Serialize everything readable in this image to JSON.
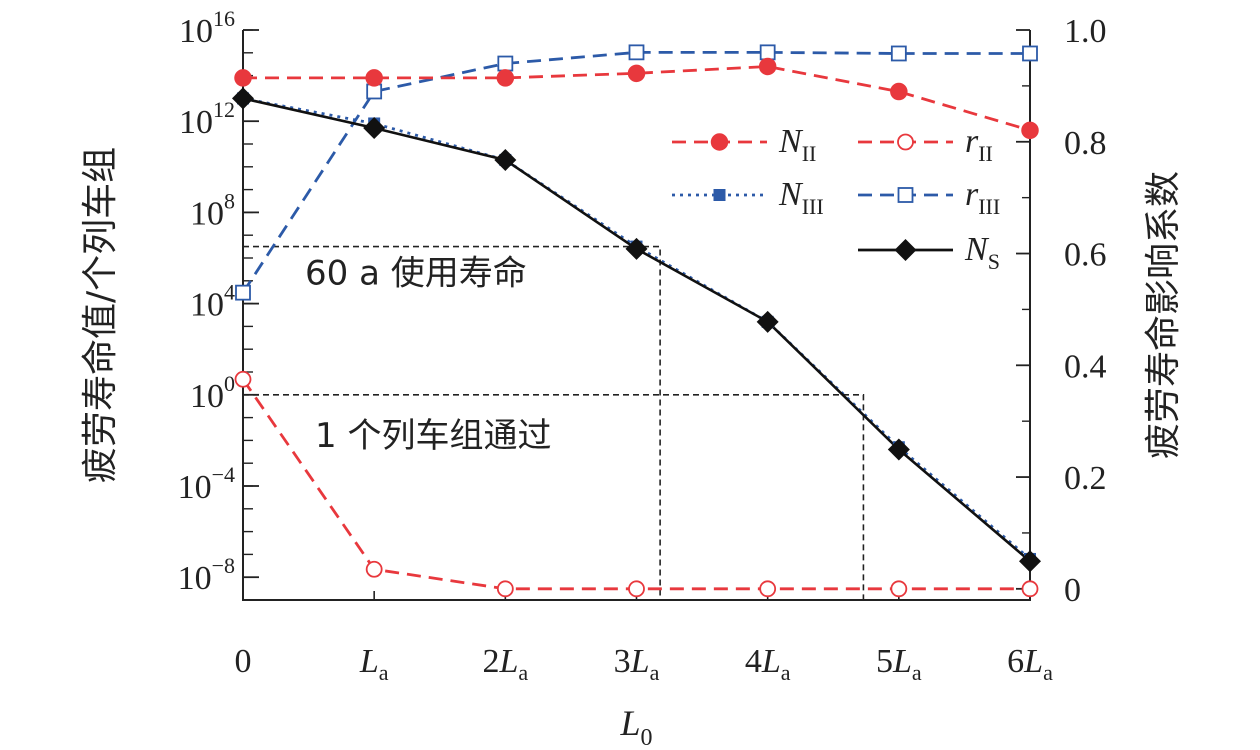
{
  "chart_data": {
    "type": "line",
    "xlabel": "L",
    "xlabel_sub": "0",
    "ylabel_left": "疲劳寿命值/个列车组",
    "ylabel_right": "疲劳寿命影响系数",
    "x_ticks": [
      {
        "coef": "",
        "sym": "",
        "text": "0"
      },
      {
        "coef": "",
        "sym": "L",
        "text": ""
      },
      {
        "coef": "2",
        "sym": "L",
        "text": ""
      },
      {
        "coef": "3",
        "sym": "L",
        "text": ""
      },
      {
        "coef": "4",
        "sym": "L",
        "text": ""
      },
      {
        "coef": "5",
        "sym": "L",
        "text": ""
      },
      {
        "coef": "6",
        "sym": "L",
        "text": ""
      }
    ],
    "x_tick_sub": "a",
    "x": [
      0,
      1,
      2,
      3,
      4,
      5,
      6
    ],
    "xlim": [
      0,
      6
    ],
    "y_left": {
      "scale": "log",
      "lim_exp": [
        -9,
        16
      ],
      "tick_base": "10",
      "tick_exps": [
        "−8",
        "−4",
        "0",
        "4",
        "8",
        "12",
        "16"
      ]
    },
    "y_right": {
      "lim": [
        -0.02,
        1.0
      ],
      "ticks": [
        0,
        0.2,
        0.4,
        0.6,
        0.8,
        1.0
      ],
      "tick_labels": [
        "0",
        "0.2",
        "0.4",
        "0.6",
        "0.8",
        "1.0"
      ]
    },
    "series": [
      {
        "name": "N",
        "sub": "II",
        "axis": "left",
        "color": "#e8383d",
        "style": "dashed",
        "marker": "filled-circle",
        "log10_values": [
          13.9,
          13.9,
          13.9,
          14.1,
          14.4,
          13.3,
          11.6
        ]
      },
      {
        "name": "N",
        "sub": "III",
        "axis": "left",
        "color": "#2c5aa8",
        "style": "dotted",
        "marker": "filled-square",
        "log10_values": [
          13.0,
          11.9,
          10.3,
          6.5,
          3.2,
          -2.3,
          -7.2
        ]
      },
      {
        "name": "N",
        "sub": "S",
        "axis": "left",
        "color": "#111111",
        "style": "solid",
        "marker": "filled-diamond",
        "log10_values": [
          13.0,
          11.7,
          10.3,
          6.4,
          3.2,
          -2.4,
          -7.3
        ]
      },
      {
        "name": "r",
        "sub": "II",
        "axis": "right",
        "color": "#e8383d",
        "style": "dashed",
        "marker": "open-circle",
        "values": [
          0.375,
          0.035,
          0.0,
          0.0,
          0.0,
          0.0,
          0.0
        ]
      },
      {
        "name": "r",
        "sub": "III",
        "axis": "right",
        "color": "#2c5aa8",
        "style": "dashed",
        "marker": "open-square",
        "values": [
          0.53,
          0.89,
          0.94,
          0.96,
          0.96,
          0.958,
          0.958
        ]
      }
    ],
    "annotations": [
      {
        "text": "60 a 使用寿命",
        "log10_y": 6.5,
        "x_intersect": 3.18
      },
      {
        "text": "1 个列车组通过",
        "log10_y": 0,
        "x_intersect": 4.73
      }
    ],
    "legend_position": "right"
  }
}
